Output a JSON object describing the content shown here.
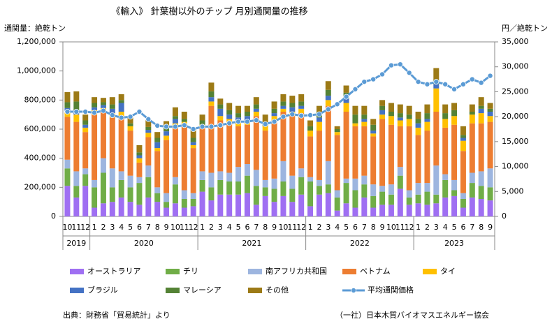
{
  "chart_data": {
    "type": "bar",
    "stacked": true,
    "title": "《輸入》 針葉樹以外のチップ 月別通関量の推移",
    "y_label": "通関量：絶乾トン",
    "y2_label": "円／絶乾トン",
    "source": "出典：財務省「貿易統計」より",
    "credit": "（一社）日本木質バイオマスエネルギー協会",
    "categories": [
      "10",
      "11",
      "12",
      "1",
      "2",
      "3",
      "4",
      "5",
      "6",
      "7",
      "8",
      "9",
      "10",
      "11",
      "12",
      "1",
      "2",
      "3",
      "4",
      "5",
      "6",
      "7",
      "8",
      "9",
      "10",
      "11",
      "12",
      "1",
      "2",
      "3",
      "4",
      "5",
      "6",
      "7",
      "8",
      "9",
      "10",
      "11",
      "12",
      "1",
      "2",
      "3",
      "4",
      "5",
      "6",
      "7",
      "8",
      "9"
    ],
    "years": [
      "2019",
      "2020",
      "2021",
      "2022",
      "2023"
    ],
    "ylim": [
      0,
      1200000
    ],
    "yticks": [
      0,
      {
        "value": 200000,
        "label": "200,000"
      },
      {
        "value": 400000,
        "label": "400,000"
      },
      {
        "value": 600000,
        "label": "600,000"
      },
      {
        "value": 800000,
        "label": "800,000"
      },
      {
        "value": 1000000,
        "label": "1,000,000"
      },
      {
        "value": 1200000,
        "label": "1,200,000"
      }
    ],
    "y2lim": [
      0,
      35000
    ],
    "y2ticks": [
      0,
      {
        "value": 5000,
        "label": "5,000"
      },
      {
        "value": 10000,
        "label": "10,000"
      },
      {
        "value": 15000,
        "label": "15,000"
      },
      {
        "value": 20000,
        "label": "20,000"
      },
      {
        "value": 25000,
        "label": "25,000"
      },
      {
        "value": 30000,
        "label": "30,000"
      },
      {
        "value": 35000,
        "label": "35,000"
      }
    ],
    "grid": false,
    "legend": "bottom",
    "series": [
      {
        "name": "オーストラリア",
        "color": "#9f6ff2",
        "values": [
          210000,
          130000,
          210000,
          60000,
          90000,
          100000,
          130000,
          100000,
          80000,
          130000,
          100000,
          60000,
          90000,
          60000,
          70000,
          170000,
          110000,
          150000,
          150000,
          150000,
          160000,
          80000,
          140000,
          100000,
          140000,
          100000,
          150000,
          70000,
          150000,
          160000,
          40000,
          90000,
          60000,
          130000,
          60000,
          80000,
          80000,
          190000,
          80000,
          90000,
          80000,
          90000,
          130000,
          140000,
          60000,
          130000,
          120000,
          110000
        ]
      },
      {
        "name": "チリ",
        "color": "#70ad47",
        "values": [
          120000,
          80000,
          80000,
          140000,
          210000,
          100000,
          120000,
          100000,
          150000,
          140000,
          60000,
          40000,
          130000,
          60000,
          50000,
          80000,
          90000,
          100000,
          90000,
          90000,
          120000,
          130000,
          60000,
          90000,
          100000,
          90000,
          120000,
          170000,
          60000,
          60000,
          90000,
          140000,
          120000,
          90000,
          80000,
          90000,
          70000,
          90000,
          50000,
          60000,
          90000,
          60000,
          120000,
          40000,
          60000,
          100000,
          90000,
          90000
        ]
      },
      {
        "name": "南アフリカ共和国",
        "color": "#9db5df",
        "values": [
          60000,
          100000,
          40000,
          50000,
          100000,
          130000,
          60000,
          80000,
          40000,
          80000,
          40000,
          60000,
          50000,
          60000,
          40000,
          60000,
          100000,
          60000,
          60000,
          100000,
          80000,
          110000,
          50000,
          70000,
          140000,
          90000,
          60000,
          30000,
          40000,
          160000,
          50000,
          30000,
          80000,
          60000,
          80000,
          40000,
          70000,
          60000,
          50000,
          80000,
          60000,
          200000,
          40000,
          70000,
          40000,
          70000,
          100000,
          130000
        ]
      },
      {
        "name": "ベトナム",
        "color": "#ed7d31",
        "values": [
          295000,
          340000,
          250000,
          450000,
          315000,
          350000,
          380000,
          310000,
          100000,
          195000,
          250000,
          365000,
          340000,
          440000,
          310000,
          300000,
          460000,
          350000,
          340000,
          280000,
          270000,
          370000,
          340000,
          400000,
          340000,
          410000,
          380000,
          280000,
          340000,
          380000,
          380000,
          460000,
          360000,
          340000,
          330000,
          460000,
          410000,
          280000,
          440000,
          330000,
          360000,
          370000,
          320000,
          380000,
          290000,
          340000,
          330000,
          320000
        ]
      },
      {
        "name": "タイ",
        "color": "#ffc000",
        "values": [
          30000,
          50000,
          30000,
          30000,
          30000,
          30000,
          30000,
          30000,
          30000,
          30000,
          20000,
          30000,
          30000,
          30000,
          20000,
          20000,
          30000,
          30000,
          30000,
          40000,
          30000,
          30000,
          30000,
          30000,
          20000,
          30000,
          30000,
          40000,
          60000,
          40000,
          20000,
          60000,
          20000,
          30000,
          20000,
          30000,
          60000,
          40000,
          50000,
          50000,
          60000,
          160000,
          60000,
          60000,
          70000,
          60000,
          70000,
          40000
        ]
      },
      {
        "name": "ブラジル",
        "color": "#4472c4",
        "values": [
          30000,
          30000,
          20000,
          20000,
          20000,
          30000,
          60000,
          0,
          20000,
          20000,
          40000,
          30000,
          30000,
          0,
          20000,
          0,
          30000,
          50000,
          30000,
          20000,
          30000,
          20000,
          0,
          20000,
          20000,
          30000,
          20000,
          0,
          30000,
          30000,
          0,
          30000,
          0,
          20000,
          20000,
          30000,
          0,
          20000,
          0,
          30000,
          20000,
          30000,
          0,
          0,
          20000,
          0,
          30000,
          30000
        ]
      },
      {
        "name": "マレーシア",
        "color": "#548235",
        "values": [
          40000,
          60000,
          30000,
          30000,
          20000,
          30000,
          20000,
          20000,
          20000,
          20000,
          30000,
          30000,
          20000,
          20000,
          30000,
          30000,
          40000,
          30000,
          30000,
          30000,
          30000,
          30000,
          30000,
          30000,
          30000,
          30000,
          30000,
          30000,
          40000,
          40000,
          20000,
          40000,
          60000,
          30000,
          40000,
          30000,
          30000,
          30000,
          30000,
          30000,
          40000,
          30000,
          40000,
          40000,
          20000,
          20000,
          20000,
          20000
        ]
      },
      {
        "name": "その他",
        "color": "#9c7a16",
        "values": [
          70000,
          70000,
          40000,
          40000,
          30000,
          50000,
          40000,
          40000,
          50000,
          50000,
          40000,
          40000,
          60000,
          50000,
          60000,
          40000,
          60000,
          40000,
          50000,
          50000,
          40000,
          50000,
          50000,
          50000,
          50000,
          50000,
          50000,
          40000,
          40000,
          60000,
          20000,
          50000,
          60000,
          60000,
          40000,
          40000,
          60000,
          60000,
          60000,
          50000,
          60000,
          80000,
          60000,
          50000,
          60000,
          50000,
          60000,
          40000
        ]
      },
      {
        "name": "平均通関価格",
        "color": "#5b9bd5",
        "axis": "y2",
        "type": "line",
        "values": [
          21000,
          21000,
          21000,
          20800,
          21200,
          20300,
          19800,
          20000,
          21000,
          19500,
          18200,
          18000,
          18000,
          18300,
          17500,
          18000,
          18000,
          18300,
          18700,
          19000,
          19000,
          19300,
          18500,
          19000,
          20000,
          20500,
          20200,
          20300,
          20500,
          21500,
          22500,
          24000,
          25500,
          27000,
          27500,
          28500,
          30300,
          30500,
          28800,
          27000,
          26500,
          27000,
          26500,
          25500,
          26500,
          27500,
          26800,
          28200
        ]
      }
    ]
  }
}
